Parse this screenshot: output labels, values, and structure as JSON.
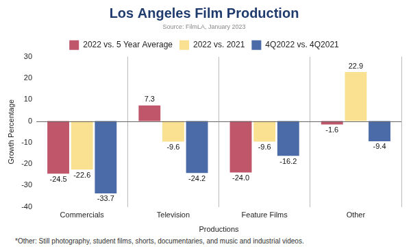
{
  "chart_data": {
    "type": "bar",
    "title": "Los Angeles Film Production",
    "subtitle": "Source: FilmLA, January 2023",
    "x_label": "Productions",
    "y_label": "Growth Percentage",
    "annotations": [
      "*Other: Still photography, student films, shorts, documentaries, and music and industrial videos."
    ],
    "categories": [
      "Commercials",
      "Television",
      "Feature Films",
      "Other"
    ],
    "series": [
      {
        "name": "2022 vs. 5 Year Average",
        "color": "#c0566a",
        "values": [
          -24.5,
          7.3,
          -24.0,
          -1.6
        ],
        "value_labels": [
          "-24.5",
          "7.3",
          "-24.0",
          "-1.6"
        ]
      },
      {
        "name": "2022 vs. 2021",
        "color": "#fae192",
        "values": [
          -22.6,
          -9.6,
          -9.6,
          22.9
        ],
        "value_labels": [
          "-22.6",
          "-9.6",
          "-9.6",
          "22.9"
        ]
      },
      {
        "name": "4Q2022 vs. 4Q2021",
        "color": "#4a6aa8",
        "values": [
          -33.7,
          -24.2,
          -16.2,
          -9.4
        ],
        "value_labels": [
          "-33.7",
          "-24.2",
          "-16.2",
          "-9.4"
        ]
      }
    ],
    "ylim": [
      -40,
      30
    ],
    "yticks": [
      -40,
      -30,
      -20,
      -10,
      0,
      10,
      20,
      30
    ],
    "grid": false,
    "legend": "top",
    "data_labels": true
  }
}
